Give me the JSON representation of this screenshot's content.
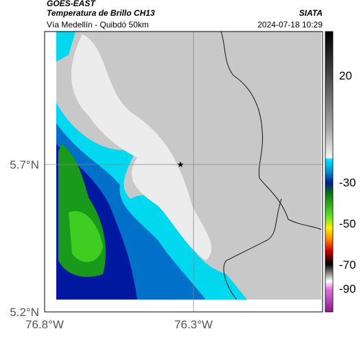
{
  "header": {
    "source": "GOES-EAST",
    "product": "Temperatura de Brillo CH13",
    "region": "Vía Medellín - Quibdó 50km",
    "agency": "SIATA",
    "timestamp": "2024-07-18 10:29"
  },
  "map": {
    "lat_labels": [
      "5.7°N",
      "5.2°N"
    ],
    "lon_labels": [
      "76.8°W",
      "76.3°W"
    ]
  },
  "colorbar": {
    "tick_labels": [
      "20",
      "-30",
      "-50",
      "-70",
      "-90"
    ]
  }
}
